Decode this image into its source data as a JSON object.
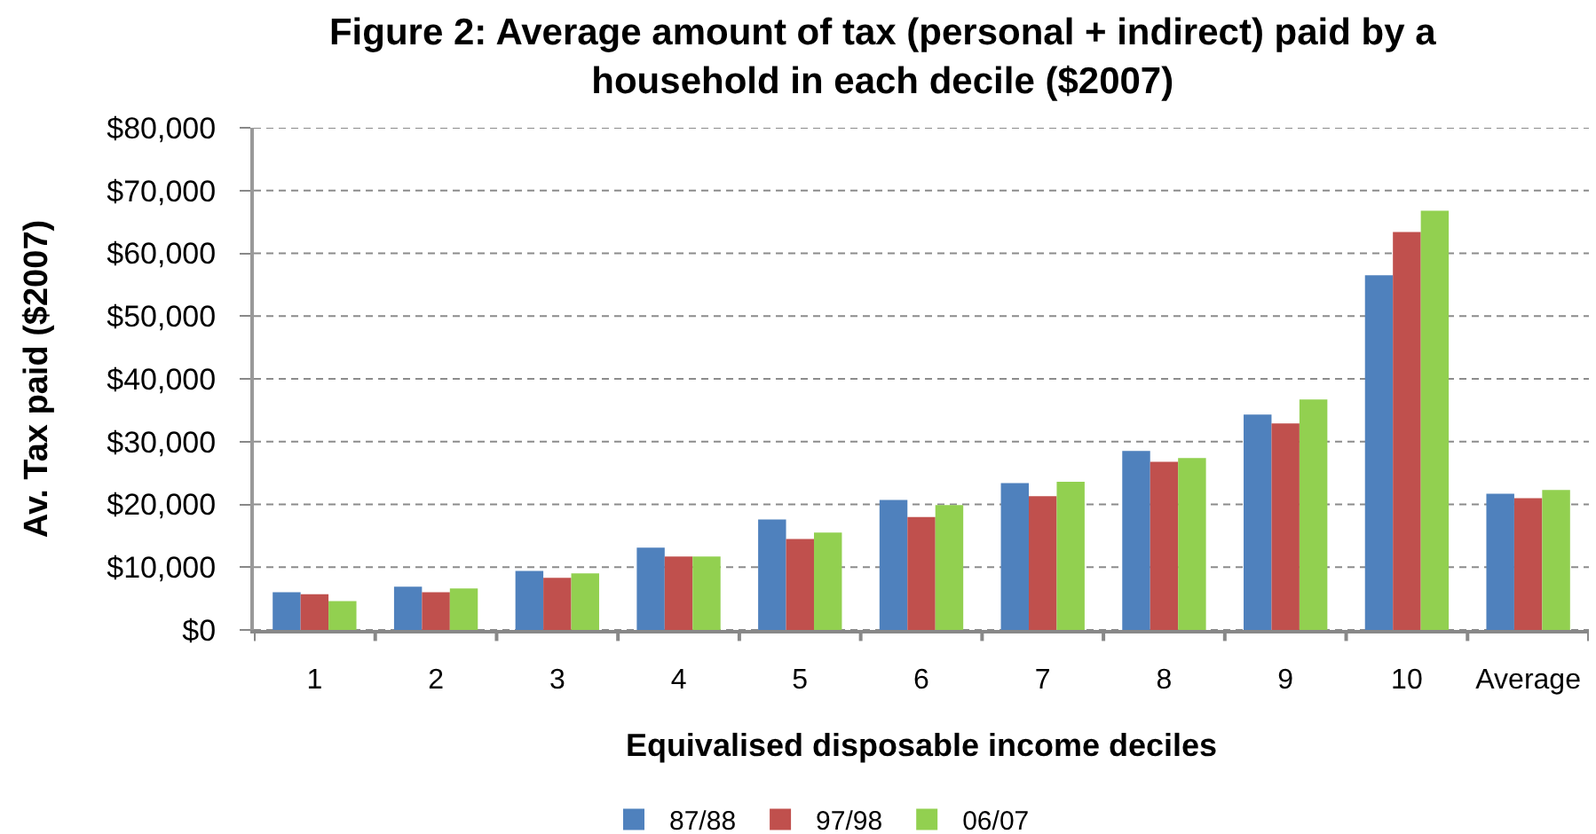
{
  "chart_data": {
    "type": "bar",
    "title": "Figure 2: Average amount of tax (personal + indirect) paid by a household in each decile ($2007)",
    "xlabel": "Equivalised disposable income deciles",
    "ylabel": "Av. Tax paid ($2007)",
    "categories": [
      "1",
      "2",
      "3",
      "4",
      "5",
      "6",
      "7",
      "8",
      "9",
      "10",
      "Average"
    ],
    "series": [
      {
        "name": "87/88",
        "color": "#4f81bd",
        "values": [
          6000,
          6900,
          9400,
          13100,
          17600,
          20700,
          23400,
          28500,
          34300,
          56500,
          21700
        ]
      },
      {
        "name": "97/98",
        "color": "#c0504d",
        "values": [
          5700,
          6000,
          8300,
          11700,
          14500,
          18000,
          21300,
          26800,
          32900,
          63400,
          21000
        ]
      },
      {
        "name": "06/07",
        "color": "#92d050",
        "values": [
          4600,
          6600,
          9000,
          11700,
          15500,
          19900,
          23600,
          27400,
          36700,
          66800,
          22300
        ]
      }
    ],
    "ylim": [
      0,
      80000
    ],
    "yticks": [
      {
        "value": 0,
        "label": "$0"
      },
      {
        "value": 10000,
        "label": "$10,000"
      },
      {
        "value": 20000,
        "label": "$20,000"
      },
      {
        "value": 30000,
        "label": "$30,000"
      },
      {
        "value": 40000,
        "label": "$40,000"
      },
      {
        "value": 50000,
        "label": "$50,000"
      },
      {
        "value": 60000,
        "label": "$60,000"
      },
      {
        "value": 70000,
        "label": "$70,000"
      },
      {
        "value": 80000,
        "label": "$80,000"
      }
    ],
    "grid": "y",
    "legend": "bottom"
  }
}
